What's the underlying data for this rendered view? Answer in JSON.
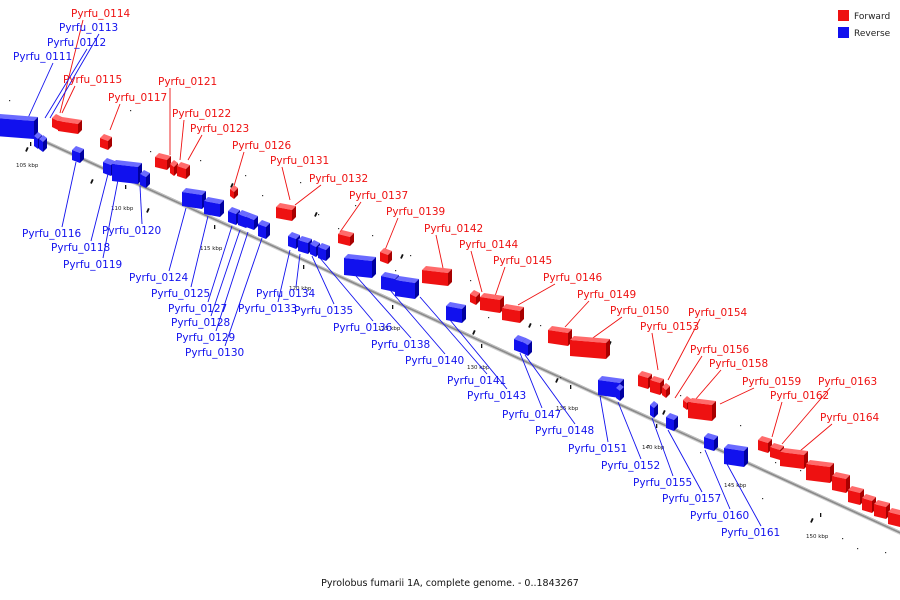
{
  "caption": "Pyrolobus fumarii 1A, complete genome. - 0..1843267",
  "colors": {
    "forward": "#ee1111",
    "forward_dark": "#a80000",
    "forward_light": "#ff6b6b",
    "reverse": "#1111ee",
    "reverse_dark": "#0000a0",
    "reverse_light": "#6b6bff",
    "axis": "#8a8a8a"
  },
  "legend": [
    {
      "label": "Forward",
      "strand": "forward"
    },
    {
      "label": "Reverse",
      "strand": "reverse"
    }
  ],
  "scale_labels": [
    "105 kbp",
    "110 kbp",
    "115 kbp",
    "120 kbp",
    "125 kbp",
    "130 kbp",
    "135 kbp",
    "140 kbp",
    "145 kbp",
    "150 kbp"
  ],
  "forward_genes": [
    "Pyrfu_0114",
    "Pyrfu_0115",
    "Pyrfu_0117",
    "Pyrfu_0121",
    "Pyrfu_0122",
    "Pyrfu_0123",
    "Pyrfu_0126",
    "Pyrfu_0131",
    "Pyrfu_0132",
    "Pyrfu_0137",
    "Pyrfu_0139",
    "Pyrfu_0142",
    "Pyrfu_0144",
    "Pyrfu_0145",
    "Pyrfu_0146",
    "Pyrfu_0149",
    "Pyrfu_0150",
    "Pyrfu_0153",
    "Pyrfu_0154",
    "Pyrfu_0156",
    "Pyrfu_0158",
    "Pyrfu_0159",
    "Pyrfu_0162",
    "Pyrfu_0163",
    "Pyrfu_0164"
  ],
  "reverse_genes": [
    "Pyrfu_0111",
    "Pyrfu_0112",
    "Pyrfu_0113",
    "Pyrfu_0116",
    "Pyrfu_0118",
    "Pyrfu_0119",
    "Pyrfu_0120",
    "Pyrfu_0124",
    "Pyrfu_0125",
    "Pyrfu_0127",
    "Pyrfu_0128",
    "Pyrfu_0129",
    "Pyrfu_0130",
    "Pyrfu_0133",
    "Pyrfu_0134",
    "Pyrfu_0135",
    "Pyrfu_0136",
    "Pyrfu_0138",
    "Pyrfu_0140",
    "Pyrfu_0141",
    "Pyrfu_0143",
    "Pyrfu_0147",
    "Pyrfu_0148",
    "Pyrfu_0151",
    "Pyrfu_0152",
    "Pyrfu_0155",
    "Pyrfu_0157",
    "Pyrfu_0160",
    "Pyrfu_0161"
  ]
}
